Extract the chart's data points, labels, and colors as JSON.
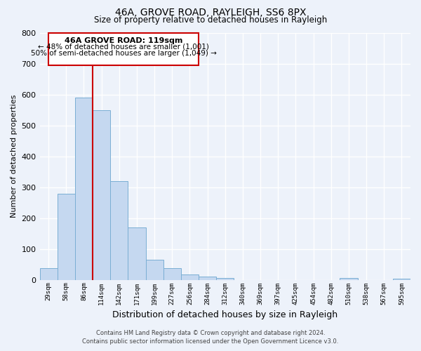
{
  "title": "46A, GROVE ROAD, RAYLEIGH, SS6 8PX",
  "subtitle": "Size of property relative to detached houses in Rayleigh",
  "xlabel": "Distribution of detached houses by size in Rayleigh",
  "ylabel": "Number of detached properties",
  "bin_labels": [
    "29sqm",
    "58sqm",
    "86sqm",
    "114sqm",
    "142sqm",
    "171sqm",
    "199sqm",
    "227sqm",
    "256sqm",
    "284sqm",
    "312sqm",
    "340sqm",
    "369sqm",
    "397sqm",
    "425sqm",
    "454sqm",
    "482sqm",
    "510sqm",
    "538sqm",
    "567sqm",
    "595sqm"
  ],
  "bar_heights": [
    38,
    278,
    590,
    550,
    320,
    170,
    65,
    38,
    18,
    10,
    5,
    0,
    0,
    0,
    0,
    0,
    0,
    5,
    0,
    0,
    3
  ],
  "bar_color": "#c5d8f0",
  "bar_edge_color": "#7aaed4",
  "ylim": [
    0,
    800
  ],
  "yticks": [
    0,
    100,
    200,
    300,
    400,
    500,
    600,
    700,
    800
  ],
  "red_line_x": 3,
  "annotation_title": "46A GROVE ROAD: 119sqm",
  "annotation_line1": "← 48% of detached houses are smaller (1,001)",
  "annotation_line2": "50% of semi-detached houses are larger (1,049) →",
  "annotation_box_color": "#ffffff",
  "annotation_box_edge": "#cc0000",
  "red_line_color": "#cc0000",
  "footer1": "Contains HM Land Registry data © Crown copyright and database right 2024.",
  "footer2": "Contains public sector information licensed under the Open Government Licence v3.0.",
  "background_color": "#edf2fa",
  "grid_color": "#ffffff"
}
